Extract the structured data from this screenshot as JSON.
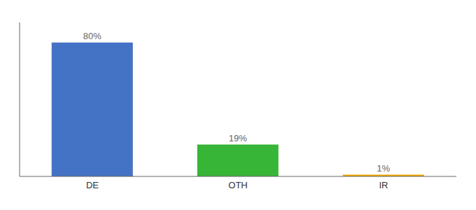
{
  "chart_data": {
    "type": "bar",
    "categories": [
      "DE",
      "OTH",
      "IR"
    ],
    "values": [
      80,
      19,
      1
    ],
    "value_labels": [
      "80%",
      "19%",
      "1%"
    ],
    "data_labels": true,
    "colors": [
      "#4472c4",
      "#36b536",
      "#f0a500"
    ],
    "ylim": [
      0,
      92
    ],
    "grid": false,
    "tick_labels": "x"
  }
}
